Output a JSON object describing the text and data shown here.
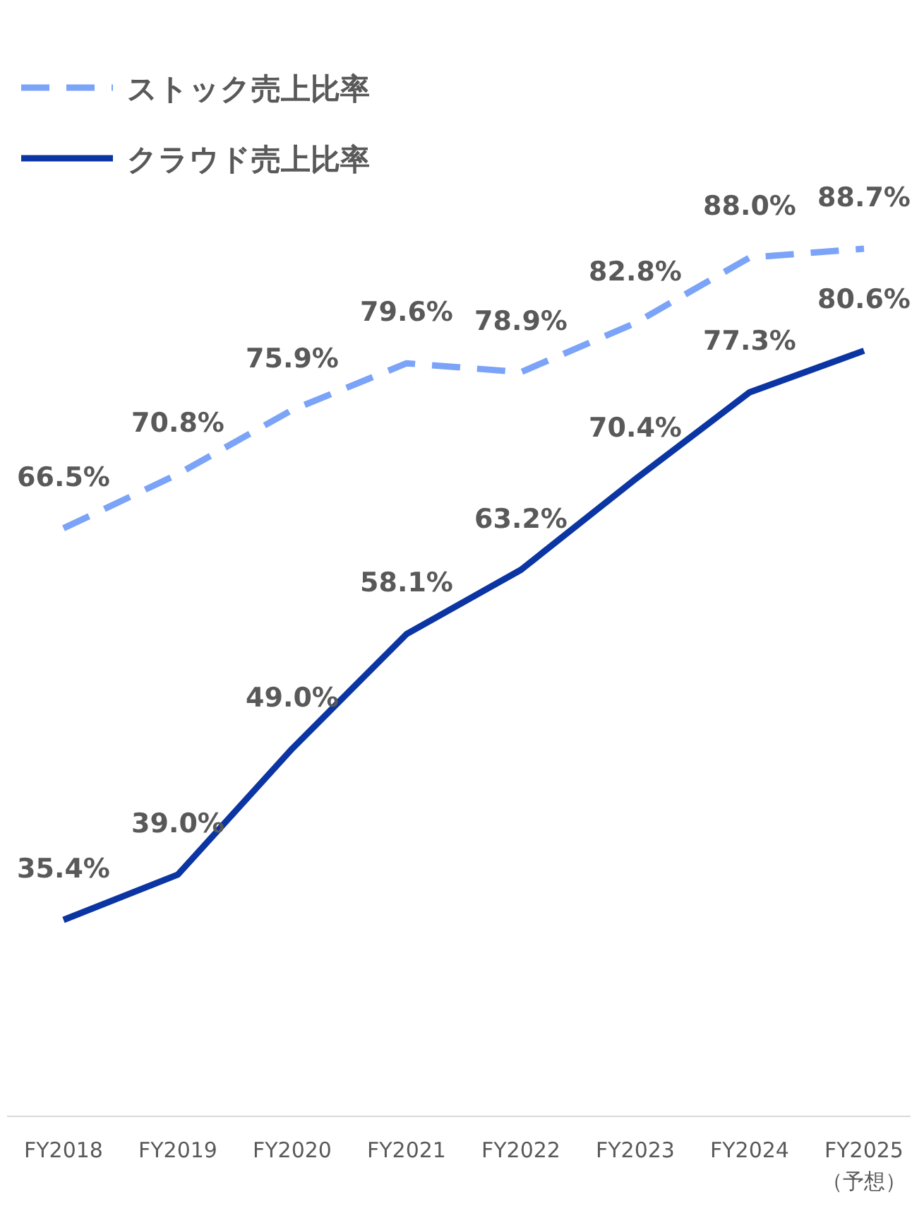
{
  "chart_data": {
    "type": "line",
    "categories": [
      "FY2018",
      "FY2019",
      "FY2020",
      "FY2021",
      "FY2022",
      "FY2023",
      "FY2024",
      "FY2025\n（予想）"
    ],
    "series": [
      {
        "name": "ストック売上比率",
        "color": "#7ba3f7",
        "line_style": "dashed",
        "values": [
          66.5,
          70.8,
          75.9,
          79.6,
          78.9,
          82.8,
          88.0,
          88.7
        ],
        "value_labels": [
          "66.5%",
          "70.8%",
          "75.9%",
          "79.6%",
          "78.9%",
          "82.8%",
          "88.0%",
          "88.7%"
        ]
      },
      {
        "name": "クラウド売上比率",
        "color": "#0b35a3",
        "line_style": "solid",
        "values": [
          35.4,
          39.0,
          49.0,
          58.1,
          63.2,
          70.4,
          77.3,
          80.6
        ],
        "value_labels": [
          "35.4%",
          "39.0%",
          "49.0%",
          "58.1%",
          "63.2%",
          "70.4%",
          "77.3%",
          "80.6%"
        ]
      }
    ],
    "legend": "top left",
    "tick_labels": "x"
  }
}
